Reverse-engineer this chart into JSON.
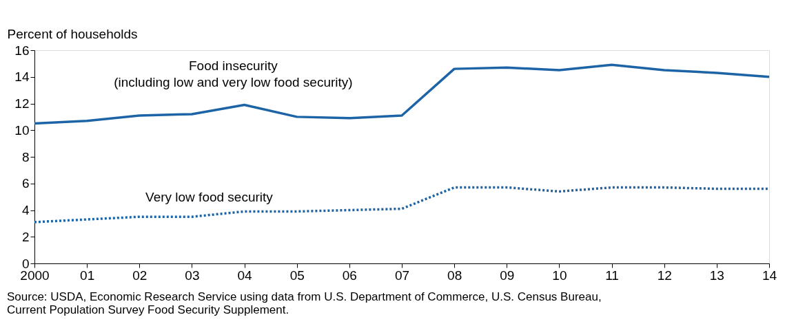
{
  "chart_data": {
    "type": "line",
    "ylabel": "Percent of households",
    "categories": [
      "2000",
      "01",
      "02",
      "03",
      "04",
      "05",
      "06",
      "07",
      "08",
      "09",
      "10",
      "11",
      "12",
      "13",
      "14"
    ],
    "series": [
      {
        "name": "Food insecurity\n(including low and very low food security)",
        "color": "#1d64a6",
        "line_style": "solid",
        "values": [
          10.5,
          10.7,
          11.1,
          11.2,
          11.9,
          11.0,
          10.9,
          11.1,
          14.6,
          14.7,
          14.5,
          14.9,
          14.5,
          14.3,
          14.0
        ]
      },
      {
        "name": "Very low food security",
        "color": "#1d64a6",
        "line_style": "dotted",
        "values": [
          3.1,
          3.3,
          3.5,
          3.5,
          3.9,
          3.9,
          4.0,
          4.1,
          5.7,
          5.7,
          5.4,
          5.7,
          5.7,
          5.6,
          5.6
        ]
      }
    ],
    "ylim": [
      0,
      16
    ],
    "yticks": [
      0,
      2,
      4,
      6,
      8,
      10,
      12,
      14,
      16
    ],
    "grid": false,
    "legend": false,
    "marker": "none",
    "annotations": [
      "Source: USDA, Economic Research Service using data from U.S. Department of Commerce, U.S. Census Bureau,",
      "Current Population Survey Food Security Supplement."
    ]
  }
}
